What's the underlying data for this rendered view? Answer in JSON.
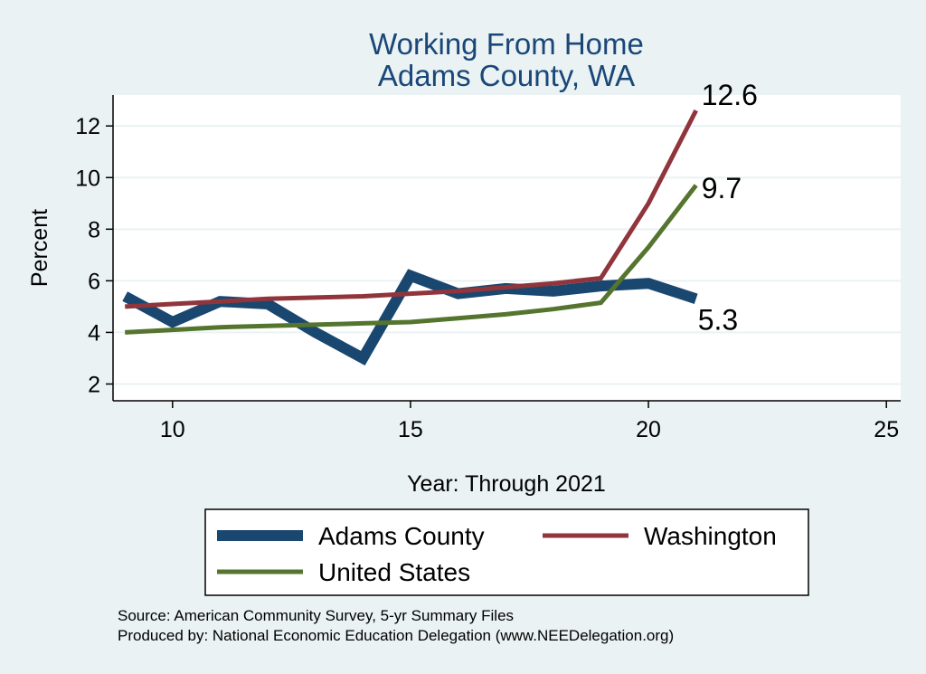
{
  "chart_data": {
    "type": "line",
    "title": "Working From Home",
    "subtitle": "Adams County, WA",
    "xlabel": "Year: Through 2021",
    "ylabel": "Percent",
    "xlim": [
      8.75,
      25.3
    ],
    "ylim": [
      1.35,
      13.2
    ],
    "x_ticks": [
      10,
      15,
      20,
      25
    ],
    "y_ticks": [
      2,
      4,
      6,
      8,
      10,
      12
    ],
    "grid": "horizontal",
    "legend_position": "bottom",
    "series": [
      {
        "name": "Adams County",
        "color": "#1a476f",
        "x": [
          9,
          10,
          11,
          12,
          13,
          14,
          15,
          16,
          17,
          18,
          19,
          20,
          21
        ],
        "values": [
          5.4,
          4.4,
          5.2,
          5.1,
          4.0,
          3.0,
          6.2,
          5.5,
          5.7,
          5.6,
          5.8,
          5.9,
          5.3
        ],
        "end_label": "5.3"
      },
      {
        "name": "Washington",
        "color": "#90353b",
        "x": [
          9,
          10,
          11,
          12,
          13,
          14,
          15,
          16,
          17,
          18,
          19,
          20,
          21
        ],
        "values": [
          5.0,
          5.1,
          5.2,
          5.3,
          5.35,
          5.4,
          5.5,
          5.6,
          5.75,
          5.9,
          6.1,
          9.0,
          12.6
        ],
        "end_label": "12.6"
      },
      {
        "name": "United States",
        "color": "#55752f",
        "x": [
          9,
          10,
          11,
          12,
          13,
          14,
          15,
          16,
          17,
          18,
          19,
          20,
          21
        ],
        "values": [
          4.0,
          4.1,
          4.2,
          4.25,
          4.3,
          4.35,
          4.4,
          4.55,
          4.7,
          4.9,
          5.15,
          7.3,
          9.7
        ],
        "end_label": "9.7"
      }
    ]
  },
  "source_lines": [
    "Source: American Community Survey, 5-yr Summary Files",
    "Produced by: National Economic Education Delegation (www.NEEDelegation.org)"
  ]
}
